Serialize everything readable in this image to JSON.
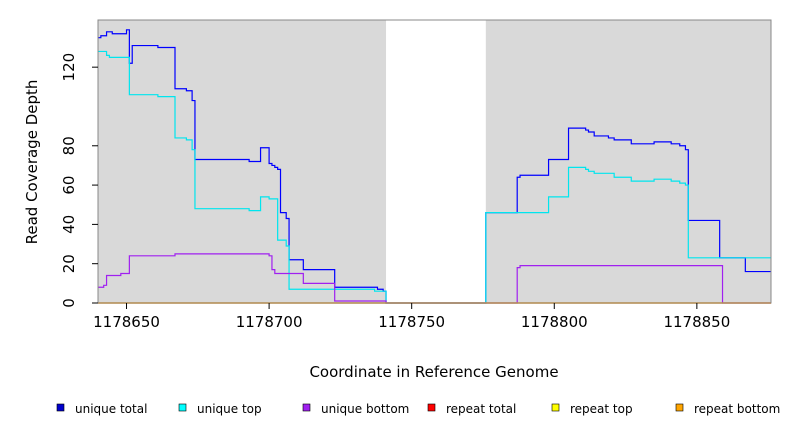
{
  "chart_data": {
    "type": "line",
    "xlabel": "Coordinate in Reference Genome",
    "ylabel": "Read Coverage Depth",
    "xlim": [
      1178640,
      1178876
    ],
    "ylim": [
      0,
      144
    ],
    "xticks": [
      1178650,
      1178700,
      1178750,
      1178800,
      1178850
    ],
    "yticks": [
      0,
      20,
      40,
      60,
      80,
      120
    ],
    "grid": false,
    "legend_position": "bottom",
    "shaded_regions": [
      [
        1178640,
        1178741
      ],
      [
        1178776,
        1178876
      ]
    ],
    "shade_color": "#d9d9d9",
    "series": [
      {
        "name": "unique total",
        "color": "#0000ff",
        "legend_color": "#0000cc",
        "points": [
          [
            1178640,
            135
          ],
          [
            1178641,
            136
          ],
          [
            1178643,
            138
          ],
          [
            1178645,
            137
          ],
          [
            1178650,
            139
          ],
          [
            1178651,
            122
          ],
          [
            1178652,
            131
          ],
          [
            1178661,
            130
          ],
          [
            1178667,
            109
          ],
          [
            1178671,
            108
          ],
          [
            1178673,
            103
          ],
          [
            1178674,
            73
          ],
          [
            1178693,
            72
          ],
          [
            1178697,
            79
          ],
          [
            1178700,
            71
          ],
          [
            1178701,
            70
          ],
          [
            1178702,
            69
          ],
          [
            1178703,
            68
          ],
          [
            1178704,
            46
          ],
          [
            1178706,
            43
          ],
          [
            1178707,
            22
          ],
          [
            1178712,
            17
          ],
          [
            1178723,
            8
          ],
          [
            1178738,
            7
          ],
          [
            1178740,
            6
          ],
          [
            1178741,
            0
          ],
          [
            1178776,
            46
          ],
          [
            1178787,
            64
          ],
          [
            1178788,
            65
          ],
          [
            1178798,
            73
          ],
          [
            1178805,
            89
          ],
          [
            1178811,
            88
          ],
          [
            1178812,
            87
          ],
          [
            1178814,
            85
          ],
          [
            1178819,
            84
          ],
          [
            1178821,
            83
          ],
          [
            1178827,
            81
          ],
          [
            1178835,
            82
          ],
          [
            1178841,
            81
          ],
          [
            1178844,
            80
          ],
          [
            1178846,
            78
          ],
          [
            1178847,
            42
          ],
          [
            1178858,
            23
          ],
          [
            1178867,
            16
          ],
          [
            1178876,
            16
          ]
        ]
      },
      {
        "name": "unique top",
        "color": "#00e5ee",
        "legend_color": "#00ffff",
        "points": [
          [
            1178640,
            128
          ],
          [
            1178643,
            126
          ],
          [
            1178644,
            125
          ],
          [
            1178651,
            106
          ],
          [
            1178661,
            105
          ],
          [
            1178667,
            84
          ],
          [
            1178671,
            83
          ],
          [
            1178673,
            78
          ],
          [
            1178674,
            48
          ],
          [
            1178693,
            47
          ],
          [
            1178697,
            54
          ],
          [
            1178700,
            53
          ],
          [
            1178703,
            32
          ],
          [
            1178706,
            29
          ],
          [
            1178707,
            7
          ],
          [
            1178712,
            7
          ],
          [
            1178723,
            7
          ],
          [
            1178737,
            6
          ],
          [
            1178741,
            0
          ],
          [
            1178776,
            46
          ],
          [
            1178787,
            46
          ],
          [
            1178798,
            54
          ],
          [
            1178805,
            69
          ],
          [
            1178811,
            68
          ],
          [
            1178812,
            67
          ],
          [
            1178814,
            66
          ],
          [
            1178821,
            64
          ],
          [
            1178827,
            62
          ],
          [
            1178835,
            63
          ],
          [
            1178841,
            62
          ],
          [
            1178844,
            61
          ],
          [
            1178846,
            60
          ],
          [
            1178847,
            23
          ],
          [
            1178858,
            23
          ],
          [
            1178876,
            23
          ]
        ]
      },
      {
        "name": "unique bottom",
        "color": "#a020f0",
        "legend_color": "#a020f0",
        "points": [
          [
            1178640,
            8
          ],
          [
            1178642,
            9
          ],
          [
            1178643,
            14
          ],
          [
            1178648,
            15
          ],
          [
            1178651,
            24
          ],
          [
            1178667,
            25
          ],
          [
            1178700,
            24
          ],
          [
            1178701,
            17
          ],
          [
            1178702,
            15
          ],
          [
            1178712,
            10
          ],
          [
            1178723,
            1
          ],
          [
            1178737,
            1
          ],
          [
            1178741,
            0
          ],
          [
            1178787,
            18
          ],
          [
            1178788,
            19
          ],
          [
            1178858,
            19
          ],
          [
            1178859,
            0
          ],
          [
            1178876,
            0
          ]
        ]
      },
      {
        "name": "repeat total",
        "color": "#ff0000",
        "legend_color": "#ff0000",
        "points": [
          [
            1178640,
            0
          ],
          [
            1178876,
            0
          ]
        ]
      },
      {
        "name": "repeat top",
        "color": "#ffff00",
        "legend_color": "#ffff00",
        "points": [
          [
            1178640,
            0
          ],
          [
            1178876,
            0
          ]
        ]
      },
      {
        "name": "repeat bottom",
        "color": "#ffa500",
        "legend_color": "#ffa500",
        "points": [
          [
            1178640,
            0
          ],
          [
            1178876,
            0
          ]
        ]
      }
    ]
  }
}
